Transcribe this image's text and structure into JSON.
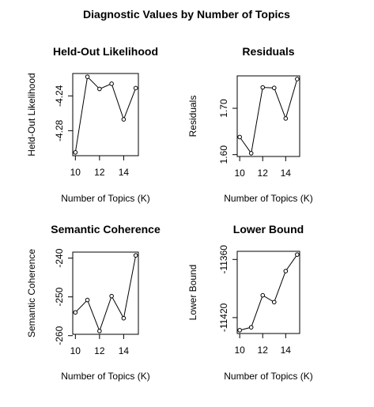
{
  "figure": {
    "title": "Diagnostic Values by Number of Topics"
  },
  "chart_data": [
    {
      "type": "line",
      "title": "Held-Out Likelihood",
      "xlabel": "Number of Topics (K)",
      "ylabel": "Held-Out Likelihood",
      "x": [
        10,
        11,
        12,
        13,
        14,
        15
      ],
      "values": [
        -4.305,
        -4.218,
        -4.232,
        -4.226,
        -4.267,
        -4.231
      ],
      "xlim": [
        10,
        15
      ],
      "ylim": [
        -4.305,
        -4.218
      ],
      "xticks": [
        10,
        12,
        14
      ],
      "yticks": [
        -4.24,
        -4.28
      ],
      "ytick_labels": [
        "-4.24",
        "-4.28"
      ]
    },
    {
      "type": "line",
      "title": "Residuals",
      "xlabel": "Number of Topics (K)",
      "ylabel": "Residuals",
      "x": [
        10,
        11,
        12,
        13,
        14,
        15
      ],
      "values": [
        1.638,
        1.603,
        1.745,
        1.744,
        1.678,
        1.763
      ],
      "xlim": [
        10,
        15
      ],
      "ylim": [
        1.603,
        1.763
      ],
      "xticks": [
        10,
        12,
        14
      ],
      "yticks": [
        1.6,
        1.7
      ],
      "ytick_labels": [
        "1.60",
        "1.70"
      ]
    },
    {
      "type": "line",
      "title": "Semantic Coherence",
      "xlabel": "Number of Topics (K)",
      "ylabel": "Semantic Coherence",
      "x": [
        10,
        11,
        12,
        13,
        14,
        15
      ],
      "values": [
        -254.0,
        -250.8,
        -258.8,
        -249.8,
        -255.5,
        -239.3
      ],
      "xlim": [
        10,
        15
      ],
      "ylim": [
        -258.8,
        -239.3
      ],
      "xticks": [
        10,
        12,
        14
      ],
      "yticks": [
        -240,
        -250,
        -260
      ],
      "ytick_labels": [
        "-240",
        "-250",
        "-260"
      ]
    },
    {
      "type": "line",
      "title": "Lower Bound",
      "xlabel": "Number of Topics (K)",
      "ylabel": "Lower Bound",
      "x": [
        10,
        11,
        12,
        13,
        14,
        15
      ],
      "values": [
        -11433,
        -11430,
        -11397,
        -11404,
        -11372,
        -11355
      ],
      "xlim": [
        10,
        15
      ],
      "ylim": [
        -11433,
        -11355
      ],
      "xticks": [
        10,
        12,
        14
      ],
      "yticks": [
        -11360,
        -11420
      ],
      "ytick_labels": [
        "-11360",
        "-11420"
      ]
    }
  ]
}
